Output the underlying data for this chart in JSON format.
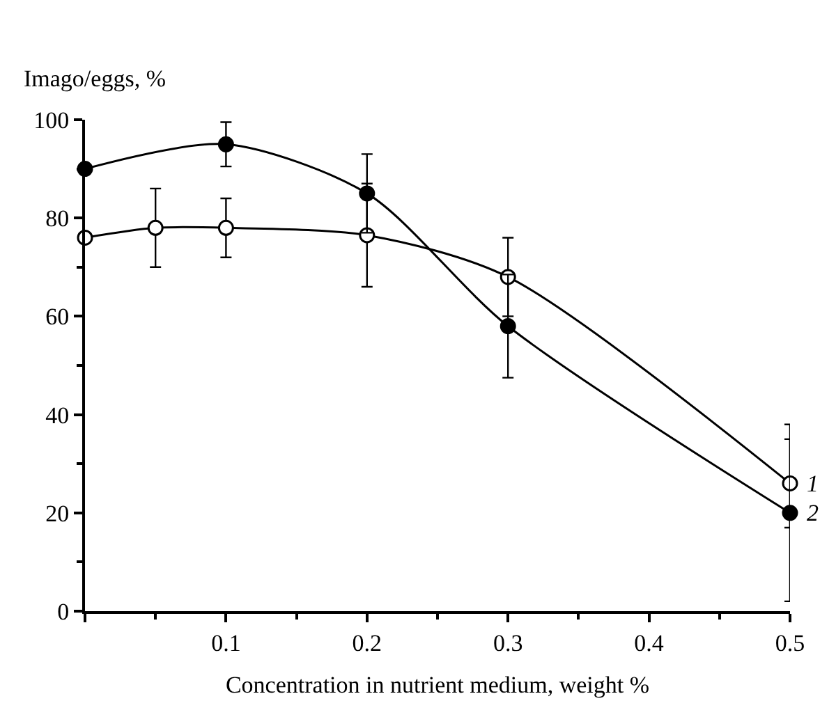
{
  "chart_data": {
    "type": "line",
    "xlabel": "Concentration in nutrient medium, weight %",
    "ylabel": "Imago/eggs, %",
    "series": [
      {
        "name": "1",
        "color": "#000000",
        "x": [
          0,
          0.05,
          0.1,
          0.2,
          0.3,
          0.5
        ],
        "values": [
          76,
          78,
          78,
          76.5,
          68,
          26
        ],
        "errors": [
          null,
          8,
          6,
          10.5,
          8,
          9
        ]
      },
      {
        "name": "2",
        "color": "#000000",
        "x": [
          0,
          0.1,
          0.2,
          0.3,
          0.5
        ],
        "values": [
          90,
          95,
          85,
          58,
          20
        ],
        "errors": [
          null,
          4.5,
          8,
          10.5,
          18
        ]
      }
    ],
    "xlim": [
      0,
      0.5
    ],
    "xticks": [
      {
        "value": 0,
        "label": null
      },
      0.1,
      0.2,
      0.3,
      0.4,
      0.5
    ],
    "ylim": [
      0,
      100
    ],
    "yticks": [
      0,
      20,
      40,
      60,
      80,
      100
    ],
    "legend": false,
    "marker": "circle",
    "line_style": "solid"
  }
}
